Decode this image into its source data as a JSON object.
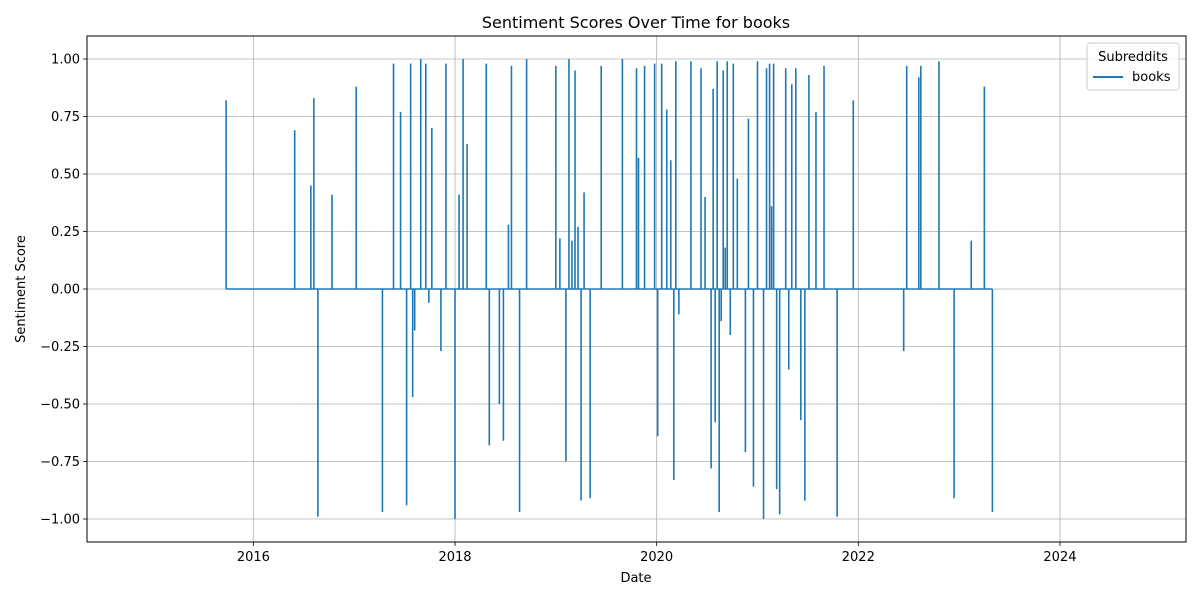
{
  "chart_data": {
    "type": "line",
    "title": "Sentiment Scores Over Time for books",
    "xlabel": "Date",
    "ylabel": "Sentiment Score",
    "xlim": [
      2014.35,
      2025.25
    ],
    "ylim": [
      -1.1,
      1.1
    ],
    "grid": true,
    "legend": {
      "title": "Subreddits",
      "placement": "top-right"
    },
    "x_ticks": [
      2016,
      2018,
      2020,
      2022,
      2024
    ],
    "x_tick_labels": [
      "2016",
      "2018",
      "2020",
      "2022",
      "2024"
    ],
    "y_ticks": [
      1.0,
      0.75,
      0.5,
      0.25,
      0.0,
      -0.25,
      -0.5,
      -0.75,
      -1.0
    ],
    "y_tick_labels": [
      "1.00",
      "0.75",
      "0.50",
      "0.25",
      "0.00",
      "−0.25",
      "−0.50",
      "−0.75",
      "−1.00"
    ],
    "series": [
      {
        "name": "books",
        "color": "#1f77b4",
        "x": [
          2015.73,
          2016.41,
          2016.5,
          2016.57,
          2016.6,
          2016.64,
          2016.7,
          2016.78,
          2017.02,
          2017.1,
          2017.15,
          2017.28,
          2017.39,
          2017.46,
          2017.52,
          2017.56,
          2017.58,
          2017.6,
          2017.66,
          2017.69,
          2017.71,
          2017.74,
          2017.77,
          2017.8,
          2017.86,
          2017.91,
          2017.93,
          2018.0,
          2018.04,
          2018.08,
          2018.12,
          2018.2,
          2018.31,
          2018.34,
          2018.44,
          2018.48,
          2018.53,
          2018.56,
          2018.64,
          2018.71,
          2018.76,
          2018.85,
          2019.0,
          2019.04,
          2019.1,
          2019.13,
          2019.16,
          2019.19,
          2019.22,
          2019.25,
          2019.28,
          2019.34,
          2019.45,
          2019.5,
          2019.58,
          2019.62,
          2019.66,
          2019.7,
          2019.8,
          2019.82,
          2019.86,
          2019.88,
          2019.93,
          2019.98,
          2020.01,
          2020.05,
          2020.1,
          2020.14,
          2020.17,
          2020.19,
          2020.22,
          2020.29,
          2020.34,
          2020.4,
          2020.44,
          2020.48,
          2020.5,
          2020.54,
          2020.56,
          2020.58,
          2020.6,
          2020.62,
          2020.64,
          2020.66,
          2020.68,
          2020.7,
          2020.73,
          2020.76,
          2020.8,
          2020.86,
          2020.88,
          2020.91,
          2020.96,
          2021.0,
          2021.03,
          2021.06,
          2021.09,
          2021.12,
          2021.14,
          2021.16,
          2021.19,
          2021.22,
          2021.25,
          2021.28,
          2021.31,
          2021.34,
          2021.38,
          2021.43,
          2021.47,
          2021.51,
          2021.58,
          2021.62,
          2021.66,
          2021.7,
          2021.79,
          2021.83,
          2021.95,
          2022.2,
          2022.33,
          2022.45,
          2022.48,
          2022.6,
          2022.62,
          2022.66,
          2022.8,
          2022.95,
          2023.05,
          2023.12,
          2023.25,
          2023.32,
          2023.33
        ],
        "values": [
          0.82,
          0.69,
          0.0,
          0.45,
          0.83,
          -0.99,
          0.0,
          0.41,
          0.88,
          0.0,
          0.0,
          -0.97,
          0.98,
          0.77,
          -0.94,
          0.98,
          -0.47,
          -0.18,
          1.0,
          0.0,
          0.98,
          -0.06,
          0.7,
          0.0,
          -0.27,
          0.98,
          0.0,
          -1.0,
          0.41,
          1.0,
          0.63,
          0.0,
          0.98,
          -0.68,
          -0.5,
          -0.66,
          0.28,
          0.97,
          -0.97,
          1.0,
          0.0,
          0.0,
          0.97,
          0.22,
          -0.75,
          1.0,
          0.21,
          0.95,
          0.27,
          -0.92,
          0.42,
          -0.91,
          0.97,
          0.0,
          0.0,
          0.0,
          1.0,
          0.0,
          0.96,
          0.57,
          0.0,
          0.97,
          0.0,
          0.98,
          -0.64,
          0.98,
          0.78,
          0.56,
          -0.83,
          0.99,
          -0.11,
          0.0,
          0.99,
          0.0,
          0.96,
          0.4,
          0.0,
          -0.78,
          0.87,
          -0.58,
          0.99,
          -0.97,
          -0.14,
          0.95,
          0.18,
          0.99,
          -0.2,
          0.98,
          0.48,
          0.0,
          -0.71,
          0.74,
          -0.86,
          0.99,
          0.0,
          -1.0,
          0.96,
          0.98,
          0.36,
          0.98,
          -0.87,
          -0.98,
          0.0,
          0.96,
          -0.35,
          0.89,
          0.96,
          -0.57,
          -0.92,
          0.93,
          0.77,
          0.0,
          0.97,
          0.0,
          -0.99,
          0.0,
          0.82,
          0.0,
          0.0,
          -0.27,
          0.97,
          0.92,
          0.97,
          0.0,
          0.99,
          -0.91,
          0.0,
          0.21,
          0.88,
          0.0,
          -0.97
        ]
      }
    ]
  }
}
